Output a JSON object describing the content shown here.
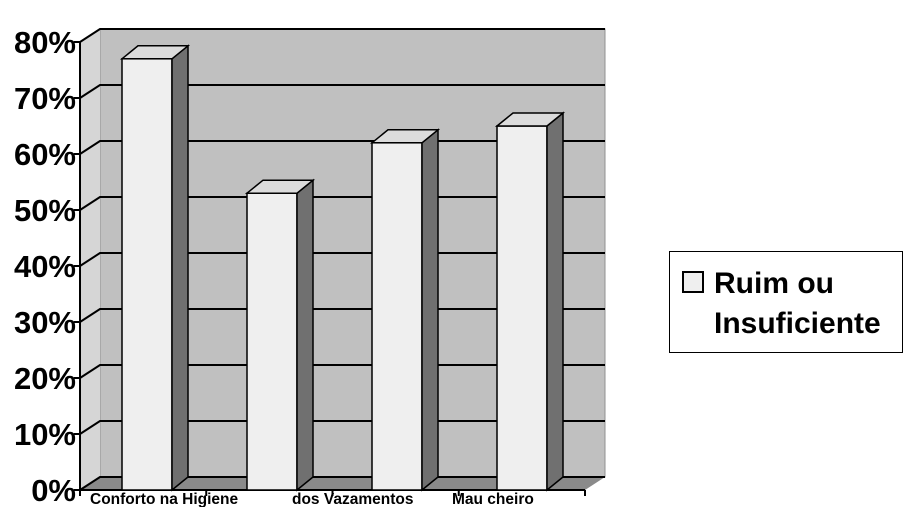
{
  "chart_data": {
    "type": "bar",
    "title": "",
    "xlabel": "",
    "ylabel": "",
    "categories": [
      "Conforto na Higiene",
      "dos Vazamentos",
      "Mau cheiro",
      ""
    ],
    "series": [
      {
        "name": "Ruim ou Insuficiente",
        "values": [
          77,
          53,
          62,
          65
        ]
      }
    ],
    "ylim": [
      0,
      80
    ],
    "yticks": [
      "0%",
      "10%",
      "20%",
      "30%",
      "40%",
      "50%",
      "60%",
      "70%",
      "80%"
    ],
    "grid": true,
    "legend_position": "right",
    "colors": {
      "bar_front": "#efefef",
      "bar_side": "#707070",
      "bar_top": "#dcdcdc",
      "wall": "#c0c0c0",
      "floor": "#8a8a8a"
    }
  },
  "legend": {
    "label": "Ruim ou Insuficiente"
  }
}
